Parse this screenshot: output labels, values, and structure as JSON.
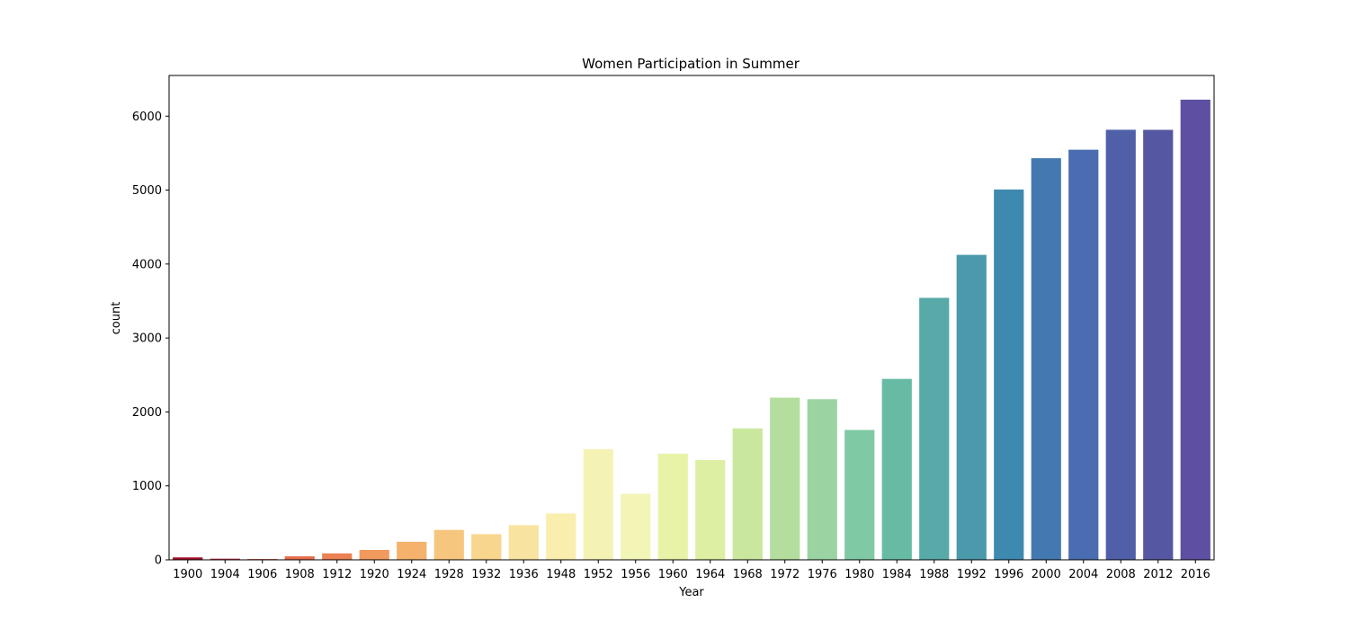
{
  "chart_data": {
    "type": "bar",
    "title": "Women Participation in Summer",
    "xlabel": "Year",
    "ylabel": "count",
    "ylim": [
      0,
      6550
    ],
    "yticks": [
      0,
      1000,
      2000,
      3000,
      4000,
      5000,
      6000
    ],
    "grid": false,
    "categories": [
      "1900",
      "1904",
      "1906",
      "1908",
      "1912",
      "1920",
      "1924",
      "1928",
      "1932",
      "1936",
      "1948",
      "1952",
      "1956",
      "1960",
      "1964",
      "1968",
      "1972",
      "1976",
      "1980",
      "1984",
      "1988",
      "1992",
      "1996",
      "2000",
      "2004",
      "2008",
      "2012",
      "2016"
    ],
    "values": [
      33,
      16,
      11,
      47,
      87,
      134,
      244,
      404,
      347,
      468,
      628,
      1497,
      893,
      1435,
      1348,
      1777,
      2193,
      2172,
      1756,
      2447,
      3543,
      4124,
      5008,
      5431,
      5546,
      5816,
      5815,
      6223
    ],
    "colors": [
      "#a50f2a",
      "#c2344b",
      "#d9534e",
      "#e66c4d",
      "#ec8154",
      "#f29a5e",
      "#f4b26d",
      "#f7c67e",
      "#f8d68d",
      "#f9e3a0",
      "#faeeae",
      "#f5f3b4",
      "#f2f5b6",
      "#e9f3a7",
      "#dcefa2",
      "#c9e79d",
      "#b4de9e",
      "#9bd4a2",
      "#7fc9a4",
      "#67bba5",
      "#57aaa8",
      "#4a9aab",
      "#3e89b0",
      "#4379b0",
      "#4a6cb0",
      "#5060a8",
      "#5657a2",
      "#5e4fa2"
    ]
  }
}
